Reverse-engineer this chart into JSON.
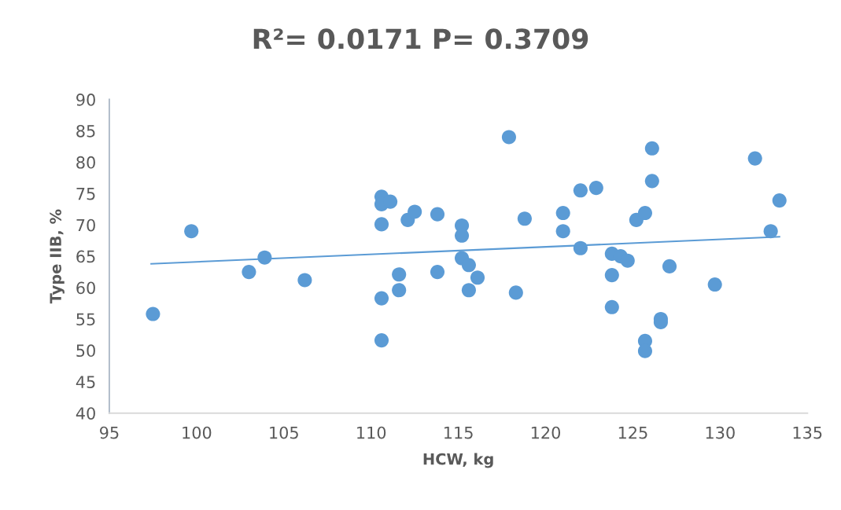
{
  "chart_data": {
    "type": "scatter",
    "title": "R²= 0.0171 P= 0.3709",
    "xlabel": "HCW, kg",
    "ylabel": "Type IIB, %",
    "xlim": [
      95,
      135
    ],
    "xticks": [
      95,
      100,
      105,
      110,
      115,
      120,
      125,
      130,
      135
    ],
    "ylim": [
      40,
      90
    ],
    "yticks": [
      40,
      45,
      50,
      55,
      60,
      65,
      70,
      75,
      80,
      85,
      90
    ],
    "grid": false,
    "series": [
      {
        "color": "#5b9bd5",
        "marker": "circle",
        "x": [
          97.5,
          99.7,
          103,
          103.9,
          106.2,
          110.6,
          110.6,
          111.1,
          110.6,
          110.6,
          110.6,
          111.6,
          111.6,
          112.1,
          112.5,
          113.8,
          113.8,
          115.2,
          115.2,
          115.2,
          115.6,
          115.6,
          116.1,
          117.9,
          118.3,
          118.8,
          121,
          121,
          122,
          122,
          122.9,
          123.8,
          124.3,
          124.7,
          123.8,
          123.8,
          125.2,
          125.7,
          126.1,
          126.1,
          125.7,
          125.7,
          126.6,
          126.6,
          127.1,
          129.7,
          132,
          132.9,
          133.4
        ],
        "values": [
          55.8,
          69,
          62.5,
          64.8,
          61.2,
          74.5,
          73.3,
          73.7,
          70.1,
          58.3,
          51.6,
          62.1,
          59.6,
          70.8,
          72.1,
          71.7,
          62.5,
          69.9,
          68.3,
          64.7,
          63.6,
          59.6,
          61.6,
          84,
          59.2,
          71,
          71.9,
          69,
          75.5,
          66.3,
          75.9,
          65.4,
          65,
          64.3,
          62,
          56.9,
          70.8,
          71.9,
          82.2,
          77,
          51.5,
          49.9,
          55,
          54.5,
          63.4,
          60.5,
          80.6,
          69,
          73.9
        ]
      },
      {
        "type": "line",
        "color": "#5b9bd5",
        "x": [
          97.4,
          133.4
        ],
        "values": [
          63.8,
          68.1
        ],
        "line_style": "solid"
      }
    ]
  }
}
